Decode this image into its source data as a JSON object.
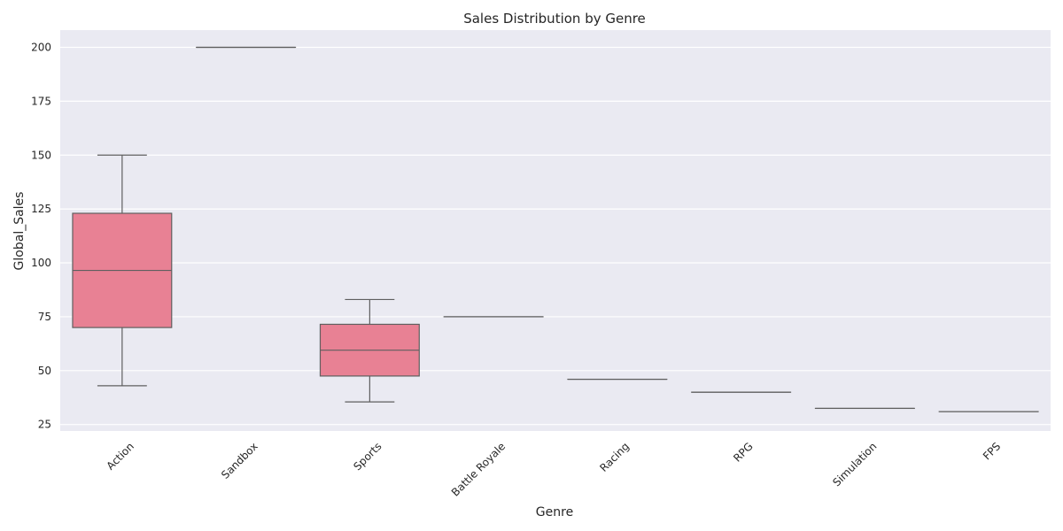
{
  "chart_data": {
    "type": "box",
    "title": "Sales Distribution by Genre",
    "xlabel": "Genre",
    "ylabel": "Global_Sales",
    "ylim": [
      22,
      208
    ],
    "yticks": [
      25,
      50,
      75,
      100,
      125,
      150,
      175,
      200
    ],
    "grid": true,
    "categories": [
      "Action",
      "Sandbox",
      "Sports",
      "Battle Royale",
      "Racing",
      "RPG",
      "Simulation",
      "FPS"
    ],
    "boxes": [
      {
        "category": "Action",
        "min": 43,
        "q1": 70,
        "median": 96.5,
        "q3": 123,
        "max": 150
      },
      {
        "category": "Sandbox",
        "min": 200,
        "q1": 200,
        "median": 200,
        "q3": 200,
        "max": 200
      },
      {
        "category": "Sports",
        "min": 35.5,
        "q1": 47.5,
        "median": 59.5,
        "q3": 71.5,
        "max": 83
      },
      {
        "category": "Battle Royale",
        "min": 75,
        "q1": 75,
        "median": 75,
        "q3": 75,
        "max": 75
      },
      {
        "category": "Racing",
        "min": 46,
        "q1": 46,
        "median": 46,
        "q3": 46,
        "max": 46
      },
      {
        "category": "RPG",
        "min": 40,
        "q1": 40,
        "median": 40,
        "q3": 40,
        "max": 40
      },
      {
        "category": "Simulation",
        "min": 32.5,
        "q1": 32.5,
        "median": 32.5,
        "q3": 32.5,
        "max": 32.5
      },
      {
        "category": "FPS",
        "min": 31,
        "q1": 31,
        "median": 31,
        "q3": 31,
        "max": 31
      }
    ]
  },
  "colors": {
    "background": "#eaeaf2",
    "grid": "#ffffff",
    "box_fill": "#e88194",
    "line": "#5f5f5f",
    "text": "#262626"
  }
}
